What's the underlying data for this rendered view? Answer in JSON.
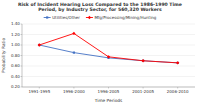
{
  "chart_data": {
    "type": "line",
    "title": "Risk of Incident Hearing Loss Compared to the 1986-1990 Time\nPeriod, by Industry Sector, for 560,320 Workers",
    "xlabel": "Time Periods",
    "ylabel": "Probability Ratio",
    "categories": [
      "1991-1995",
      "1996-2000",
      "1996-2005",
      "2001-2005",
      "2006-2010"
    ],
    "series": [
      {
        "name": "Utilities/Other",
        "color": "#4472c4",
        "marker": "square",
        "values": [
          1.0,
          0.855,
          0.755,
          0.7,
          0.66
        ]
      },
      {
        "name": "Mfg/Processing/Mining/Hunting",
        "color": "#ff0000",
        "marker": "diamond",
        "values": [
          1.0,
          1.22,
          0.775,
          0.7,
          0.66
        ]
      }
    ],
    "ylim": [
      0.2,
      1.4
    ],
    "yticks": [
      {
        "value": 0.2,
        "label": "0.20"
      },
      {
        "value": 0.4,
        "label": "0.40"
      },
      {
        "value": 0.6,
        "label": "0.60"
      },
      {
        "value": 0.8,
        "label": "0.80"
      },
      {
        "value": 1.0,
        "label": "1.00"
      },
      {
        "value": 1.2,
        "label": "1.20"
      },
      {
        "value": 1.4,
        "label": "1.40"
      }
    ],
    "grid": true,
    "legend": "top"
  }
}
